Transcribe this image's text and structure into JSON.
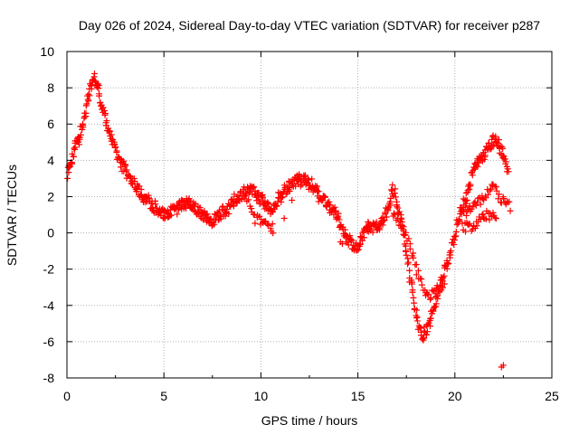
{
  "chart_data": {
    "type": "scatter",
    "title": "Day 026 of 2024, Sidereal Day-to-day VTEC variation (SDTVAR) for receiver p287",
    "xlabel": "GPS time / hours",
    "ylabel": "SDTVAR / TECUs",
    "xlim": [
      0,
      25
    ],
    "ylim": [
      -8,
      10
    ],
    "x_ticks": [
      0,
      5,
      10,
      15,
      20,
      25
    ],
    "y_ticks": [
      -8,
      -6,
      -4,
      -2,
      0,
      2,
      4,
      6,
      8,
      10
    ],
    "grid": true,
    "marker": "plus",
    "color": "#ff0000",
    "series": [
      {
        "name": "SDTVAR p287",
        "trend": [
          [
            0.0,
            3.0
          ],
          [
            0.2,
            3.8
          ],
          [
            0.4,
            4.9
          ],
          [
            0.6,
            5.1
          ],
          [
            0.8,
            5.8
          ],
          [
            1.0,
            7.1
          ],
          [
            1.2,
            8.2
          ],
          [
            1.4,
            8.5
          ],
          [
            1.6,
            8.0
          ],
          [
            1.8,
            7.0
          ],
          [
            2.0,
            6.2
          ],
          [
            2.3,
            5.2
          ],
          [
            2.6,
            4.2
          ],
          [
            3.0,
            3.5
          ],
          [
            3.4,
            2.8
          ],
          [
            3.8,
            2.1
          ],
          [
            4.2,
            1.7
          ],
          [
            4.6,
            1.3
          ],
          [
            5.0,
            1.0
          ],
          [
            5.5,
            1.3
          ],
          [
            6.0,
            1.6
          ],
          [
            6.5,
            1.5
          ],
          [
            7.0,
            1.0
          ],
          [
            7.5,
            0.6
          ],
          [
            8.0,
            1.1
          ],
          [
            8.5,
            1.6
          ],
          [
            9.0,
            2.1
          ],
          [
            9.5,
            2.4
          ],
          [
            10.0,
            1.9
          ],
          [
            10.5,
            1.2
          ],
          [
            11.0,
            2.0
          ],
          [
            11.5,
            2.6
          ],
          [
            12.0,
            3.0
          ],
          [
            12.5,
            2.7
          ],
          [
            13.0,
            2.1
          ],
          [
            13.5,
            1.6
          ],
          [
            14.0,
            0.8
          ],
          [
            14.5,
            -0.4
          ],
          [
            15.0,
            -0.9
          ],
          [
            15.5,
            0.4
          ],
          [
            16.0,
            0.2
          ],
          [
            16.5,
            1.2
          ],
          [
            16.8,
            2.4
          ],
          [
            17.2,
            1.0
          ],
          [
            17.6,
            -1.8
          ],
          [
            18.0,
            -4.5
          ],
          [
            18.3,
            -5.8
          ],
          [
            18.6,
            -5.3
          ],
          [
            19.0,
            -3.8
          ],
          [
            19.4,
            -2.3
          ],
          [
            19.8,
            -1.0
          ],
          [
            20.2,
            0.8
          ],
          [
            20.6,
            2.0
          ],
          [
            21.0,
            3.6
          ],
          [
            21.5,
            4.3
          ],
          [
            22.0,
            5.1
          ],
          [
            22.4,
            4.6
          ],
          [
            22.8,
            3.0
          ]
        ],
        "band": 0.55,
        "extra_branches": [
          [
            [
              9.3,
              1.9
            ],
            [
              9.6,
              0.8
            ],
            [
              10.2,
              0.6
            ],
            [
              10.7,
              0.2
            ]
          ],
          [
            [
              16.8,
              1.2
            ],
            [
              17.5,
              -0.2
            ],
            [
              18.1,
              -2.3
            ],
            [
              18.6,
              -3.5
            ],
            [
              19.0,
              -3.3
            ],
            [
              19.5,
              -2.6
            ]
          ],
          [
            [
              20.3,
              1.0
            ],
            [
              21.0,
              1.5
            ],
            [
              21.6,
              2.1
            ],
            [
              22.0,
              2.6
            ],
            [
              22.4,
              1.8
            ],
            [
              22.9,
              1.4
            ]
          ],
          [
            [
              20.4,
              0.3
            ],
            [
              21.0,
              0.4
            ],
            [
              21.6,
              1.0
            ],
            [
              22.2,
              0.9
            ]
          ]
        ],
        "outliers": [
          [
            22.4,
            -7.4
          ],
          [
            22.5,
            -7.3
          ],
          [
            11.6,
            1.8
          ],
          [
            11.2,
            0.8
          ],
          [
            14.2,
            -0.6
          ],
          [
            14.1,
            -0.5
          ]
        ]
      }
    ]
  }
}
